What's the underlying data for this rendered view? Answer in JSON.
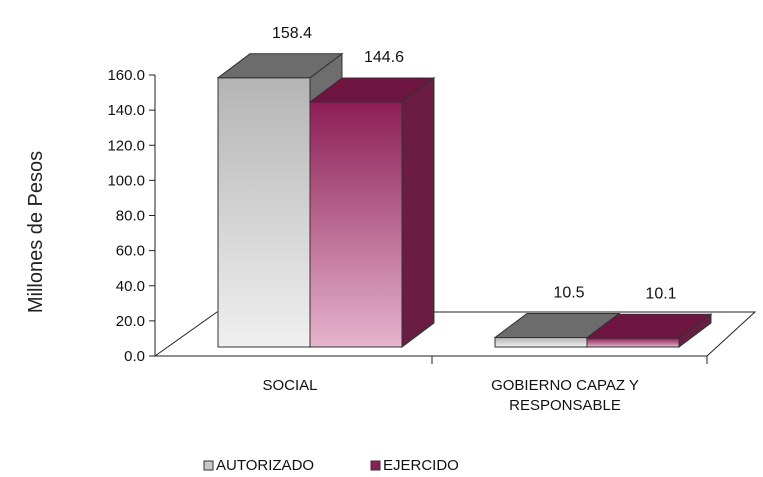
{
  "chart_data": {
    "type": "bar",
    "ylabel": "Millones de Pesos",
    "ylim": [
      0,
      160
    ],
    "yticks": [
      "0.0",
      "20.0",
      "40.0",
      "60.0",
      "80.0",
      "100.0",
      "120.0",
      "140.0",
      "160.0"
    ],
    "categories": [
      [
        "SOCIAL"
      ],
      [
        "GOBIERNO CAPAZ Y",
        "RESPONSABLE"
      ]
    ],
    "series": [
      {
        "name": "AUTORIZADO",
        "values": [
          158.4,
          10.5
        ],
        "labels": [
          "158.4",
          "10.5"
        ],
        "colors": {
          "front_top": "#b4b4b4",
          "front_bottom": "#f0f0f0",
          "side": "#6e6e6e",
          "top": "#6c6c6c"
        }
      },
      {
        "name": "EJERCIDO",
        "values": [
          144.6,
          10.1
        ],
        "labels": [
          "144.6",
          "10.1"
        ],
        "colors": {
          "front_top": "#8c1e55",
          "front_bottom": "#e6b4cd",
          "side": "#6a1c42",
          "top": "#6e1441"
        }
      }
    ],
    "legend_position": "bottom",
    "three_d": true
  }
}
